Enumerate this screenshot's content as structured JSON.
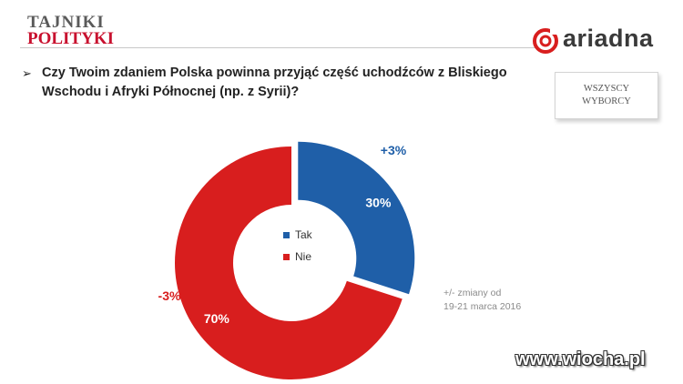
{
  "header": {
    "brand_top": "TAJNIKI",
    "brand_bottom": "POLITYKI",
    "pollster": "ariadna"
  },
  "filter_label_line1": "WSZYSCY",
  "filter_label_line2": "WYBORCY",
  "question": "Czy Twoim zdaniem Polska powinna przyjąć część uchodźców z Bliskiego Wschodu i Afryki Północnej (np. z Syrii)?",
  "note_line1": "+/- zmiany od",
  "note_line2": "19-21 marca 2016",
  "watermark": "www.wiocha.pl",
  "colors": {
    "tak": "#1f5fa8",
    "nie": "#d81e1e",
    "brand_red": "#c8102e"
  },
  "chart_data": {
    "type": "pie",
    "donut": true,
    "title": "",
    "legend_position": "center",
    "categories": [
      "Tak",
      "Nie"
    ],
    "values": [
      30,
      70
    ],
    "value_labels": [
      "30%",
      "70%"
    ],
    "changes": [
      "+3%",
      "-3%"
    ],
    "exploded": "Tak"
  }
}
